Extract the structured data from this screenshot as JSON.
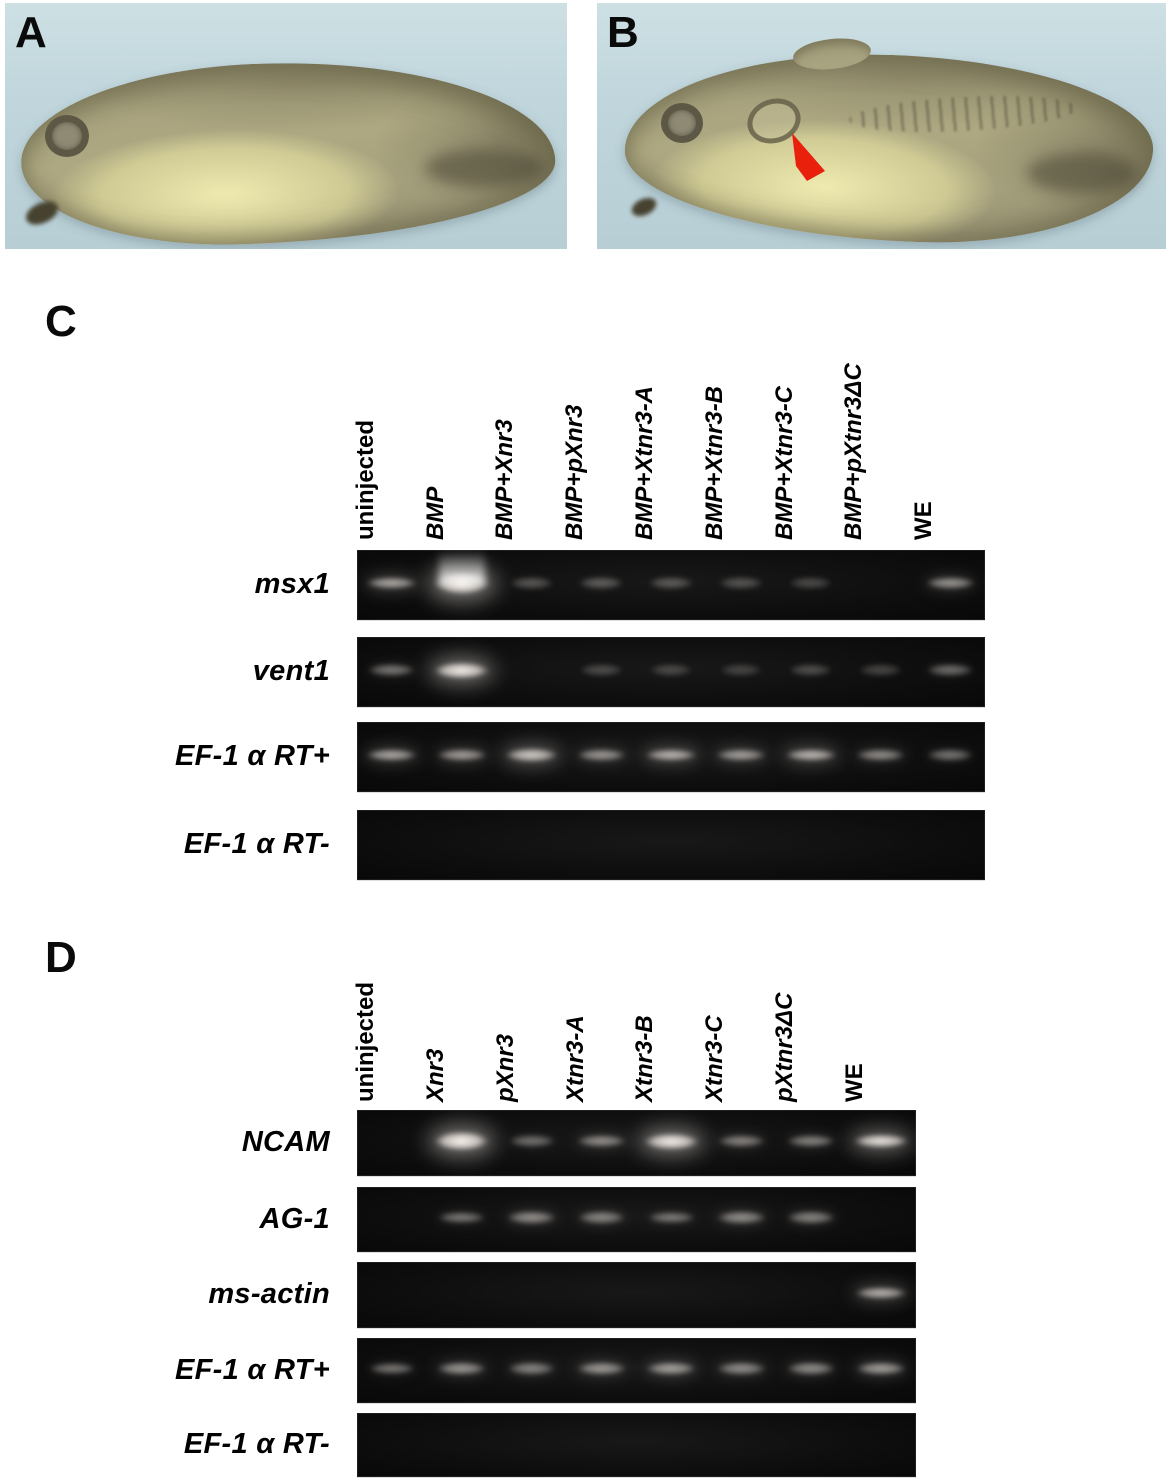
{
  "colors": {
    "photo_bg": "#c0d6dc",
    "arrowhead": "#e8200c",
    "gel_bg": "#0c0c0c",
    "band": "#fff8f1"
  },
  "panels": {
    "A": {
      "letter": "A"
    },
    "B": {
      "letter": "B"
    },
    "C": {
      "letter": "C",
      "lanes": [
        "uninjected",
        "BMP",
        "BMP+Xnr3",
        "BMP+pXnr3",
        "BMP+Xtnr3-A",
        "BMP+Xtnr3-B",
        "BMP+Xtnr3-C",
        "BMP+pXtnr3ΔC",
        "WE"
      ],
      "rows": [
        {
          "label": "msx1",
          "bands": [
            0.55,
            1.0,
            0.12,
            0.15,
            0.13,
            0.1,
            0.05,
            0.0,
            0.45
          ]
        },
        {
          "label": "vent1",
          "bands": [
            0.3,
            0.9,
            0.0,
            0.06,
            0.04,
            0.02,
            0.08,
            0.04,
            0.25
          ]
        },
        {
          "label": "EF-1 α RT+",
          "bands": [
            0.55,
            0.5,
            0.72,
            0.45,
            0.6,
            0.5,
            0.62,
            0.4,
            0.28
          ]
        },
        {
          "label": "EF-1 α RT-",
          "bands": [
            0,
            0,
            0,
            0,
            0,
            0,
            0,
            0,
            0
          ]
        }
      ]
    },
    "D": {
      "letter": "D",
      "lanes": [
        "uninjected",
        "Xnr3",
        "pXnr3",
        "Xtnr3-A",
        "Xtnr3-B",
        "Xtnr3-C",
        "pXtnr3ΔC",
        "WE"
      ],
      "rows": [
        {
          "label": "NCAM",
          "bands": [
            0,
            0.95,
            0.25,
            0.4,
            0.9,
            0.35,
            0.35,
            0.85
          ]
        },
        {
          "label": "AG-1",
          "bands": [
            0,
            0.3,
            0.4,
            0.35,
            0.3,
            0.4,
            0.35,
            0.0
          ]
        },
        {
          "label": "ms-actin",
          "bands": [
            0,
            0,
            0,
            0,
            0,
            0,
            0,
            0.6
          ]
        },
        {
          "label": "EF-1 α RT+",
          "bands": [
            0.3,
            0.45,
            0.35,
            0.45,
            0.5,
            0.4,
            0.4,
            0.5
          ]
        },
        {
          "label": "EF-1 α RT-",
          "bands": [
            0,
            0,
            0,
            0,
            0,
            0,
            0,
            0
          ]
        }
      ]
    }
  }
}
